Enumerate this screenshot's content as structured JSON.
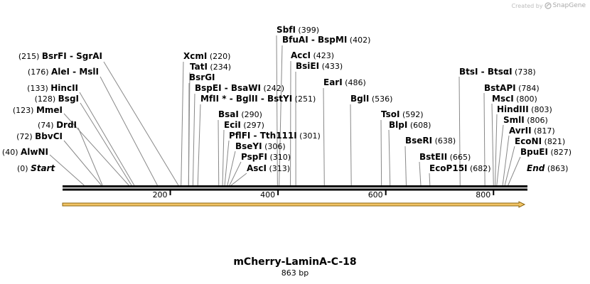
{
  "credit": {
    "prefix": "Created by",
    "brand": "SnapGene",
    "logo_icon": "snapgene-logo-icon"
  },
  "sequence": {
    "name": "mCherry-LaminA-C-18",
    "length_label": "863 bp",
    "length": 863
  },
  "ruler": {
    "ticks": [
      200,
      400,
      600,
      800
    ]
  },
  "feature": {
    "direction": "forward",
    "color": "#f2c464",
    "outline": "#8a6410"
  },
  "ends": [
    {
      "pos_label": "(0)",
      "name": "Start",
      "pos": 0
    },
    {
      "pos_label": "(863)",
      "name": "End",
      "pos": 863
    }
  ],
  "sites": [
    {
      "name": "AlwNI",
      "pos": 40,
      "pos_label": "(40)",
      "side": "left"
    },
    {
      "name": "BbvCI",
      "pos": 72,
      "pos_label": "(72)",
      "side": "left"
    },
    {
      "name": "DrdI",
      "pos": 74,
      "pos_label": "(74)",
      "side": "left"
    },
    {
      "name": "MmeI",
      "pos": 123,
      "pos_label": "(123)",
      "side": "left"
    },
    {
      "name": "BsgI",
      "pos": 128,
      "pos_label": "(128)",
      "side": "left"
    },
    {
      "name": "HincII",
      "pos": 133,
      "pos_label": "(133)",
      "side": "left"
    },
    {
      "name": "AleI  -  MslI",
      "pos": 176,
      "pos_label": "(176)",
      "side": "left"
    },
    {
      "name": "BsrFI  -  SgrAI",
      "pos": 215,
      "pos_label": "(215)",
      "side": "left"
    },
    {
      "name": "XcmI",
      "pos": 220,
      "pos_label": "(220)",
      "side": "right"
    },
    {
      "name": "TatI",
      "pos": 234,
      "pos_label": "(234)",
      "side": "right"
    },
    {
      "name": "BsrGI",
      "pos": 234,
      "pos_label": "",
      "side": "right"
    },
    {
      "name": "BspEI  -  BsaWI",
      "pos": 242,
      "pos_label": "(242)",
      "side": "right"
    },
    {
      "name": "MfII *  -  BglII  -  BstYI",
      "pos": 251,
      "pos_label": "(251)",
      "side": "right"
    },
    {
      "name": "BsaI",
      "pos": 290,
      "pos_label": "(290)",
      "side": "right"
    },
    {
      "name": "EciI",
      "pos": 297,
      "pos_label": "(297)",
      "side": "right"
    },
    {
      "name": "PflFI  -  Tth111I",
      "pos": 301,
      "pos_label": "(301)",
      "side": "right"
    },
    {
      "name": "BseYI",
      "pos": 306,
      "pos_label": "(306)",
      "side": "right"
    },
    {
      "name": "PspFI",
      "pos": 310,
      "pos_label": "(310)",
      "side": "right"
    },
    {
      "name": "AscI",
      "pos": 313,
      "pos_label": "(313)",
      "side": "right"
    },
    {
      "name": "SbfI",
      "pos": 399,
      "pos_label": "(399)",
      "side": "right"
    },
    {
      "name": "BfuAI  -  BspMI",
      "pos": 402,
      "pos_label": "(402)",
      "side": "right"
    },
    {
      "name": "AccI",
      "pos": 423,
      "pos_label": "(423)",
      "side": "right"
    },
    {
      "name": "BsiEI",
      "pos": 433,
      "pos_label": "(433)",
      "side": "right"
    },
    {
      "name": "EarI",
      "pos": 486,
      "pos_label": "(486)",
      "side": "right"
    },
    {
      "name": "BglI",
      "pos": 536,
      "pos_label": "(536)",
      "side": "right"
    },
    {
      "name": "TsoI",
      "pos": 592,
      "pos_label": "(592)",
      "side": "right"
    },
    {
      "name": "BlpI",
      "pos": 608,
      "pos_label": "(608)",
      "side": "right"
    },
    {
      "name": "BseRI",
      "pos": 638,
      "pos_label": "(638)",
      "side": "right"
    },
    {
      "name": "BstEII",
      "pos": 665,
      "pos_label": "(665)",
      "side": "right"
    },
    {
      "name": "EcoP15I",
      "pos": 682,
      "pos_label": "(682)",
      "side": "right"
    },
    {
      "name": "BtsI  -  BtsαI",
      "pos": 738,
      "pos_label": "(738)",
      "side": "right"
    },
    {
      "name": "BstAPI",
      "pos": 784,
      "pos_label": "(784)",
      "side": "right"
    },
    {
      "name": "MscI",
      "pos": 800,
      "pos_label": "(800)",
      "side": "right"
    },
    {
      "name": "HindIII",
      "pos": 803,
      "pos_label": "(803)",
      "side": "right"
    },
    {
      "name": "SmlI",
      "pos": 806,
      "pos_label": "(806)",
      "side": "right"
    },
    {
      "name": "AvrII",
      "pos": 817,
      "pos_label": "(817)",
      "side": "right"
    },
    {
      "name": "EcoNI",
      "pos": 821,
      "pos_label": "(821)",
      "side": "right"
    },
    {
      "name": "BpuEI",
      "pos": 827,
      "pos_label": "(827)",
      "side": "right"
    }
  ]
}
